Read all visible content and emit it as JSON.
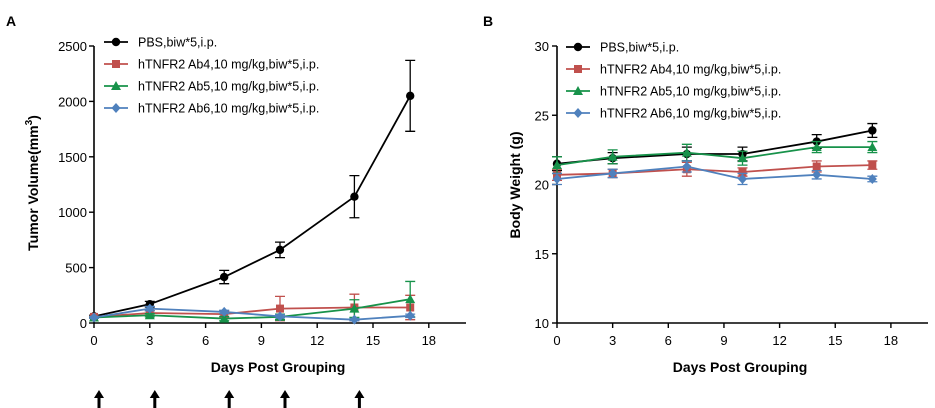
{
  "chart_data": [
    {
      "type": "line",
      "panel_label": "A",
      "xlabel": "Days Post Grouping",
      "ylabel": "Tumor Volume(mm",
      "ylabel_sup": "3",
      "ylabel_close": ")",
      "xlim": [
        0,
        20
      ],
      "ylim": [
        0,
        2500
      ],
      "xticks": [
        "0",
        "3",
        "6",
        "9",
        "12",
        "15",
        "18"
      ],
      "yticks": [
        "0",
        "500",
        "1000",
        "1500",
        "2000",
        "2500"
      ],
      "grid": false,
      "legend_position": "top-left",
      "series": [
        {
          "name": "PBS,biw*5,i.p.",
          "color": "#000000",
          "marker": "circle",
          "x": [
            0,
            3,
            7,
            10,
            14,
            17
          ],
          "y": [
            60,
            170,
            415,
            660,
            1140,
            2050
          ],
          "err": [
            10,
            25,
            60,
            70,
            190,
            320
          ]
        },
        {
          "name": "hTNFR2 Ab4,10 mg/kg,biw*5,i.p.",
          "color": "#c0504d",
          "marker": "square",
          "x": [
            0,
            3,
            7,
            10,
            14,
            17
          ],
          "y": [
            55,
            90,
            80,
            130,
            140,
            140
          ],
          "err": [
            8,
            20,
            30,
            110,
            120,
            110
          ]
        },
        {
          "name": "hTNFR2 Ab5,10 mg/kg,biw*5,i.p.",
          "color": "#17924a",
          "marker": "triangle",
          "x": [
            0,
            3,
            7,
            10,
            14,
            17
          ],
          "y": [
            50,
            70,
            40,
            55,
            130,
            215
          ],
          "err": [
            8,
            15,
            20,
            25,
            80,
            160
          ]
        },
        {
          "name": "hTNFR2 Ab6,10 mg/kg,biw*5,i.p.",
          "color": "#4f81bd",
          "marker": "diamond",
          "x": [
            0,
            3,
            7,
            10,
            14,
            17
          ],
          "y": [
            50,
            130,
            100,
            60,
            30,
            65
          ],
          "err": [
            8,
            20,
            15,
            15,
            10,
            15
          ]
        }
      ],
      "dosing_days": [
        0,
        3,
        7,
        10,
        14
      ]
    },
    {
      "type": "line",
      "panel_label": "B",
      "xlabel": "Days Post Grouping",
      "ylabel": "Body Weight (g)",
      "xlim": [
        0,
        20
      ],
      "ylim": [
        10,
        30
      ],
      "xticks": [
        "0",
        "3",
        "6",
        "9",
        "12",
        "15",
        "18"
      ],
      "yticks": [
        "10",
        "15",
        "20",
        "25",
        "30"
      ],
      "grid": false,
      "legend_position": "top-left",
      "series": [
        {
          "name": "PBS,biw*5,i.p.",
          "color": "#000000",
          "marker": "circle",
          "x": [
            0,
            3,
            7,
            10,
            14,
            17
          ],
          "y": [
            21.5,
            21.9,
            22.2,
            22.2,
            23.1,
            23.9
          ],
          "err": [
            0.5,
            0.4,
            0.5,
            0.5,
            0.5,
            0.5
          ]
        },
        {
          "name": "hTNFR2 Ab4,10 mg/kg,biw*5,i.p.",
          "color": "#c0504d",
          "marker": "square",
          "x": [
            0,
            3,
            7,
            10,
            14,
            17
          ],
          "y": [
            20.7,
            20.8,
            21.1,
            20.9,
            21.3,
            21.4
          ],
          "err": [
            0.4,
            0.3,
            0.5,
            0.3,
            0.4,
            0.3
          ]
        },
        {
          "name": "hTNFR2 Ab5,10 mg/kg,biw*5,i.p.",
          "color": "#17924a",
          "marker": "triangle",
          "x": [
            0,
            3,
            7,
            10,
            14,
            17
          ],
          "y": [
            21.4,
            22.0,
            22.3,
            21.9,
            22.7,
            22.7
          ],
          "err": [
            0.6,
            0.5,
            0.6,
            0.5,
            0.4,
            0.4
          ]
        },
        {
          "name": "hTNFR2 Ab6,10 mg/kg,biw*5,i.p.",
          "color": "#4f81bd",
          "marker": "diamond",
          "x": [
            0,
            3,
            7,
            10,
            14,
            17
          ],
          "y": [
            20.4,
            20.8,
            21.3,
            20.4,
            20.7,
            20.4
          ],
          "err": [
            0.4,
            0.3,
            0.4,
            0.4,
            0.3,
            0.2
          ]
        }
      ]
    }
  ]
}
